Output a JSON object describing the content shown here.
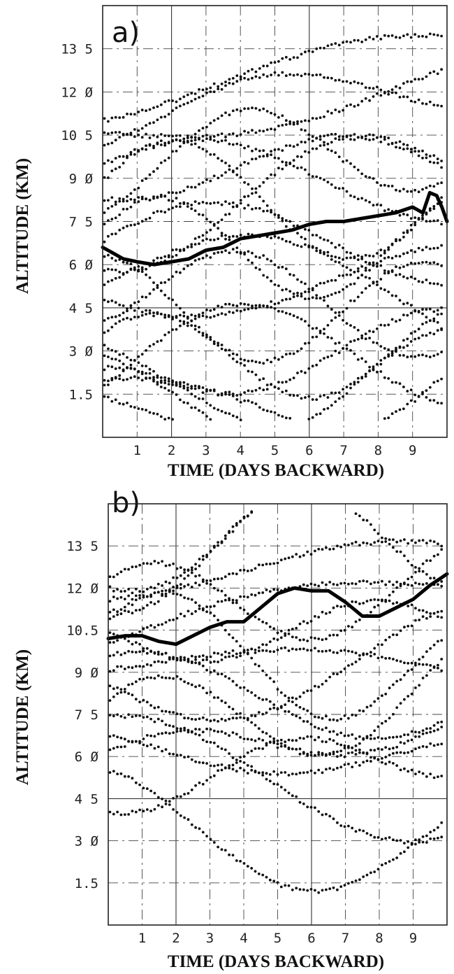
{
  "chart_data": [
    {
      "type": "scatter",
      "panel_label": "a)",
      "xlabel": "TIME (DAYS BACKWARD)",
      "ylabel": "ALTITUDE (KM)",
      "xlim": [
        0,
        10
      ],
      "ylim": [
        0,
        15
      ],
      "x_ticks": [
        1,
        2,
        3,
        4,
        5,
        6,
        7,
        8,
        9
      ],
      "x_tick_labels": [
        "1",
        "2",
        "3",
        "4",
        "5",
        "6",
        "7",
        "8",
        "9"
      ],
      "y_ticks": [
        1.5,
        3,
        4.5,
        6,
        7.5,
        9,
        10.5,
        12,
        13.5
      ],
      "y_tick_labels": [
        "1.5",
        "3 Ø",
        "4 5",
        "6 Ø",
        "7 5",
        "9 Ø",
        "10 5",
        "12 Ø",
        "13 5"
      ],
      "grid": true,
      "trajectory_start_altitudes": [
        1.4,
        1.7,
        2.0,
        2.4,
        2.8,
        3.2,
        3.6,
        4.0,
        4.8,
        5.3,
        5.8,
        6.3,
        6.8,
        7.3,
        7.8,
        8.3,
        8.9,
        9.5,
        10.1,
        10.6,
        11.0
      ],
      "mean_trajectory": {
        "x": [
          0,
          0.3,
          0.6,
          1.0,
          1.5,
          2.0,
          2.5,
          3.0,
          3.5,
          4.0,
          4.5,
          5.0,
          5.5,
          6.0,
          6.5,
          7.0,
          7.5,
          8.0,
          8.5,
          9.0,
          9.3,
          9.5,
          9.7,
          9.85,
          10.0
        ],
        "y": [
          6.6,
          6.4,
          6.2,
          6.1,
          6.0,
          6.1,
          6.2,
          6.5,
          6.6,
          6.9,
          7.0,
          7.1,
          7.2,
          7.4,
          7.5,
          7.5,
          7.6,
          7.7,
          7.8,
          8.0,
          7.8,
          8.5,
          8.4,
          8.0,
          7.5
        ]
      }
    },
    {
      "type": "scatter",
      "panel_label": "b)",
      "xlabel": "TIME (DAYS BACKWARD)",
      "ylabel": "ALTITUDE (KM)",
      "xlim": [
        0,
        10
      ],
      "ylim": [
        0,
        15
      ],
      "x_ticks": [
        1,
        2,
        3,
        4,
        5,
        6,
        7,
        8,
        9
      ],
      "x_tick_labels": [
        "1",
        "2",
        "3",
        "4",
        "5",
        "6",
        "7",
        "8",
        "9"
      ],
      "y_ticks": [
        1.5,
        3,
        4.5,
        6,
        7.5,
        9,
        10.5,
        12,
        13.5
      ],
      "y_tick_labels": [
        "1.5",
        "3 Ø",
        "4 5",
        "6 Ø",
        "7 5",
        "9 Ø",
        "10.5",
        "12 Ø",
        "13 5"
      ],
      "grid": true,
      "trajectory_start_altitudes": [
        4.0,
        5.5,
        6.2,
        6.8,
        7.4,
        8.0,
        8.6,
        9.1,
        9.6,
        10.0,
        10.4,
        10.8,
        11.2,
        11.6,
        12.0,
        12.3
      ],
      "mean_trajectory": {
        "x": [
          0,
          0.5,
          1.0,
          1.5,
          2.0,
          2.5,
          3.0,
          3.5,
          4.0,
          4.5,
          5.0,
          5.5,
          6.0,
          6.5,
          7.0,
          7.5,
          8.0,
          8.5,
          9.0,
          9.5,
          10.0
        ],
        "y": [
          10.2,
          10.3,
          10.3,
          10.1,
          10.0,
          10.3,
          10.6,
          10.8,
          10.8,
          11.3,
          11.8,
          12.0,
          11.9,
          11.9,
          11.5,
          11.0,
          11.0,
          11.3,
          11.6,
          12.1,
          12.5
        ]
      }
    }
  ]
}
